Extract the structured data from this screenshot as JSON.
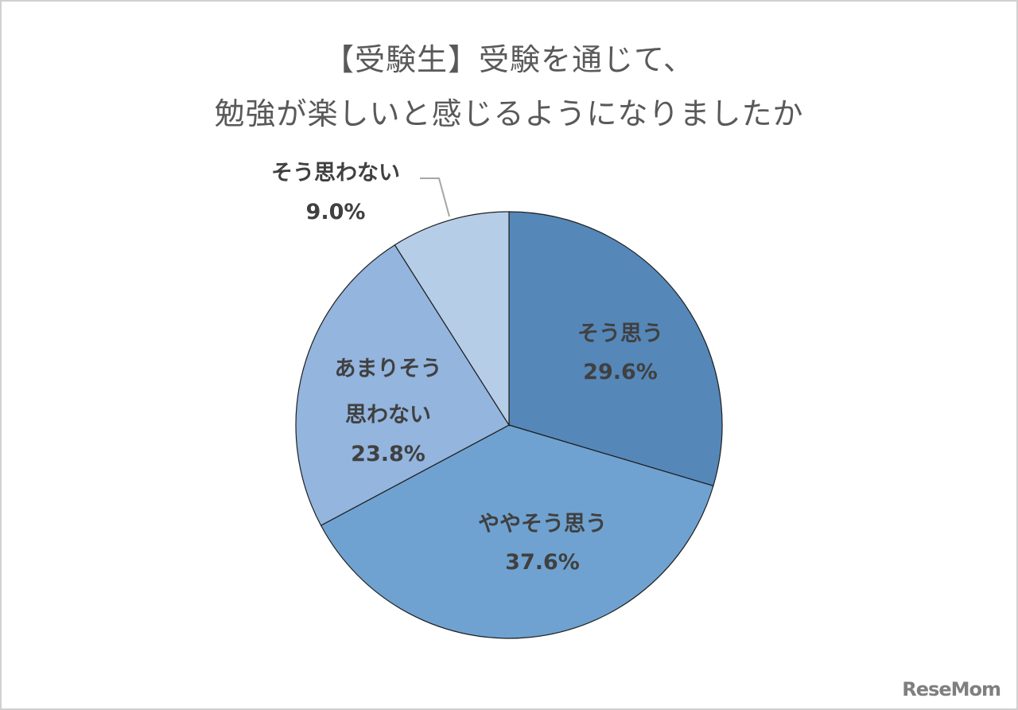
{
  "chart_data": {
    "type": "pie",
    "title_line1": "【受験生】受験を通じて、",
    "title_line2": "勉強が楽しいと感じるようになりましたか",
    "slices": [
      {
        "label": "そう思う",
        "value": 29.6,
        "value_label": "29.6%",
        "color": "#5587b9"
      },
      {
        "label": "ややそう思う",
        "value": 37.6,
        "value_label": "37.6%",
        "color": "#6fa2d0"
      },
      {
        "label": "あまりそう思わない",
        "value": 23.8,
        "value_label": "23.8%",
        "color": "#93b5de"
      },
      {
        "label": "そう思わない",
        "value": 9.0,
        "value_label": "9.0%",
        "color": "#b6cde8"
      }
    ],
    "start_angle": "12 o'clock",
    "direction": "clockwise"
  },
  "label_lines": {
    "slice0": [
      "そう思う",
      "29.6%"
    ],
    "slice1": [
      "ややそう思う",
      "37.6%"
    ],
    "slice2": [
      "あまりそう",
      "思わない",
      "23.8%"
    ],
    "slice3": [
      "そう思わない",
      "9.0%"
    ]
  },
  "logo": "ReseMom"
}
